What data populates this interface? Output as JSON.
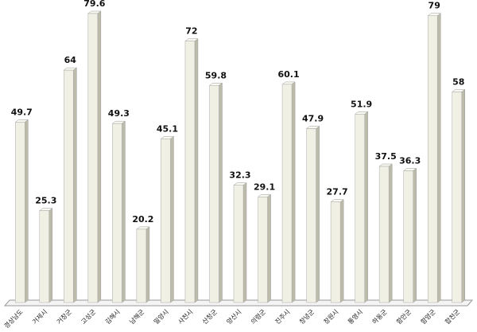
{
  "chart_data": {
    "type": "bar",
    "categories": [
      "경상남도",
      "거제시",
      "거창군",
      "고성군",
      "김해시",
      "남해군",
      "밀양시",
      "사천시",
      "산청군",
      "양산시",
      "의령군",
      "진주시",
      "창녕군",
      "창원시",
      "통영시",
      "하동군",
      "함안군",
      "함양군",
      "합천군"
    ],
    "values": [
      49.7,
      25.3,
      64,
      79.6,
      49.3,
      20.2,
      45.1,
      72,
      59.8,
      32.3,
      29.1,
      60.1,
      47.9,
      27.7,
      51.9,
      37.5,
      36.3,
      79,
      58
    ],
    "color": "#f1f0e4"
  }
}
